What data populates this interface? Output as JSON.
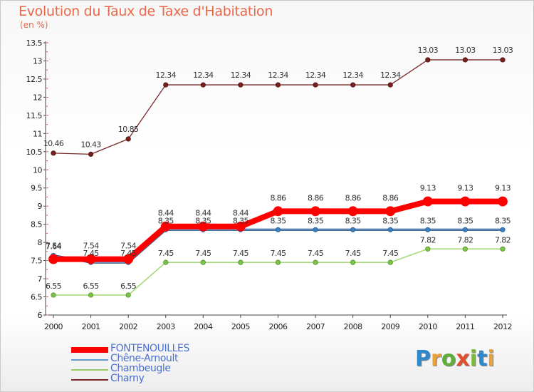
{
  "title": "Evolution du Taux de Taxe d'Habitation",
  "unit": "(en %)",
  "logo": {
    "letters": [
      "P",
      "r",
      "o",
      "x",
      "i",
      "t",
      "i"
    ],
    "colors": [
      "#2e88c9",
      "#e9a13a",
      "#5fae3a",
      "#e24f2c",
      "#7cb937",
      "#2e88c9",
      "#e9a13a"
    ]
  },
  "chart_data": {
    "type": "line",
    "title": "Evolution du Taux de Taxe d'Habitation",
    "ylabel": "(en %)",
    "xlabel": "",
    "x": [
      "2000",
      "2001",
      "2002",
      "2003",
      "2004",
      "2005",
      "2006",
      "2007",
      "2008",
      "2009",
      "2010",
      "2011",
      "2012"
    ],
    "ylim": [
      6,
      13.5
    ],
    "yticks": [
      "6",
      "6.5",
      "7",
      "7.5",
      "8",
      "8.5",
      "9",
      "9.5",
      "10",
      "10.5",
      "11",
      "11.5",
      "12",
      "12.5",
      "13",
      "13.5"
    ],
    "legend_position": "bottom-left",
    "grid": false,
    "series": [
      {
        "name": "FONTENOUILLES",
        "color": "#ff0000",
        "values": [
          7.54,
          7.54,
          7.54,
          8.44,
          8.44,
          8.44,
          8.86,
          8.86,
          8.86,
          8.86,
          9.13,
          9.13,
          9.13
        ],
        "labels": [
          "7.54",
          "7.54",
          "7.54",
          "8.44",
          "8.44",
          "8.44",
          "8.86",
          "8.86",
          "8.86",
          "8.86",
          "9.13",
          "9.13",
          "9.13"
        ]
      },
      {
        "name": "Chêne-Arnoult",
        "color": "#6699cc",
        "values": [
          7.64,
          7.45,
          7.45,
          8.35,
          8.35,
          8.35,
          8.35,
          8.35,
          8.35,
          8.35,
          8.35,
          8.35,
          8.35
        ],
        "labels": [
          "7.64",
          "7.45",
          "7.45",
          "8.35",
          "8.35",
          "8.35",
          "8.35",
          "8.35",
          "8.35",
          "8.35",
          "8.35",
          "8.35",
          "8.35"
        ]
      },
      {
        "name": "Chambeugle",
        "color": "#99cc66",
        "values": [
          6.55,
          6.55,
          6.55,
          7.45,
          7.45,
          7.45,
          7.45,
          7.45,
          7.45,
          7.45,
          7.82,
          7.82,
          7.82
        ],
        "labels": [
          "6.55",
          "6.55",
          "6.55",
          "7.45",
          "7.45",
          "7.45",
          "7.45",
          "7.45",
          "7.45",
          "7.45",
          "7.82",
          "7.82",
          "7.82"
        ]
      },
      {
        "name": "Charny",
        "color": "#7a2a2a",
        "values": [
          10.46,
          10.43,
          10.85,
          12.34,
          12.34,
          12.34,
          12.34,
          12.34,
          12.34,
          12.34,
          13.03,
          13.03,
          13.03
        ],
        "labels": [
          "10.46",
          "10.43",
          "10.85",
          "12.34",
          "12.34",
          "12.34",
          "12.34",
          "12.34",
          "12.34",
          "12.34",
          "13.03",
          "13.03",
          "13.03"
        ]
      }
    ]
  }
}
